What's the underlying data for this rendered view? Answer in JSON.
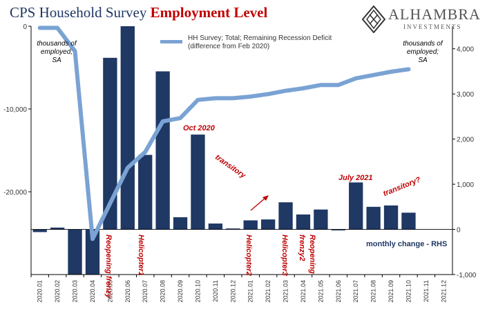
{
  "title": {
    "part1": "CPS Household Survey",
    "part2": "Employment Level"
  },
  "logo": {
    "name": "ALHAMBRA",
    "sub": "INVESTMENTS"
  },
  "notes": {
    "left": [
      "thousands of",
      "employed;",
      "SA"
    ],
    "right": [
      "thousands of",
      "employed;",
      "SA"
    ]
  },
  "legend": {
    "line": [
      "HH Survey; Total; Remaining Recession Deficit",
      "(difference from Feb 2020)"
    ]
  },
  "bar_series_label": "monthly change - RHS",
  "annotations": {
    "oct2020": "Oct 2020",
    "transitory": "transitory",
    "july2021": "July 2021",
    "transitory_q": "transitory?",
    "reopening_frenzy": "Reopening frenzy",
    "helicopter1": "Helicopter1",
    "helicopter2": "Helicopter2",
    "helicopter3": "Helicopter3",
    "frenzy2": "frenzy2",
    "reopening": "Reopening"
  },
  "colors": {
    "bar": "#1f3864",
    "line": "#7aa3d4",
    "accent": "#c00000"
  },
  "chart_data": {
    "type": "bar+line",
    "categories": [
      "2020.01",
      "2020.02",
      "2020.03",
      "2020.04",
      "2020.05",
      "2020.06",
      "2020.07",
      "2020.08",
      "2020.09",
      "2020.10",
      "2020.11",
      "2020.12",
      "2021.01",
      "2021.02",
      "2021.03",
      "2021.04",
      "2021.05",
      "2021.06",
      "2021.07",
      "2021.08",
      "2021.09",
      "2021.10",
      "2021.11",
      "2021.12"
    ],
    "left_axis": {
      "ylim": [
        -30000,
        0
      ],
      "ticks": [
        0,
        -10000,
        -20000
      ],
      "tick_labels": [
        "0",
        "-10,000",
        "-20,000"
      ]
    },
    "right_axis": {
      "ylim": [
        -1000,
        4500
      ],
      "ticks": [
        -1000,
        0,
        1000,
        2000,
        3000,
        4000
      ],
      "tick_labels": [
        "-1,000",
        "0",
        "1,000",
        "2,000",
        "3,000",
        "4,000"
      ]
    },
    "line_series": {
      "axis": "left",
      "values": [
        -200,
        -200,
        -3000,
        -25700,
        -21400,
        -17100,
        -15200,
        -11500,
        -11100,
        -8900,
        -8700,
        -8700,
        -8500,
        -8200,
        -7800,
        -7500,
        -7100,
        -7100,
        -6300,
        -5900,
        -5500,
        -5200,
        null,
        null
      ]
    },
    "bar_series": {
      "axis": "right",
      "values": [
        -60,
        40,
        -1900,
        -1800,
        3800,
        4500,
        1650,
        3500,
        270,
        2100,
        130,
        20,
        200,
        220,
        600,
        330,
        440,
        0,
        1040,
        500,
        530,
        370,
        null,
        null
      ]
    }
  }
}
